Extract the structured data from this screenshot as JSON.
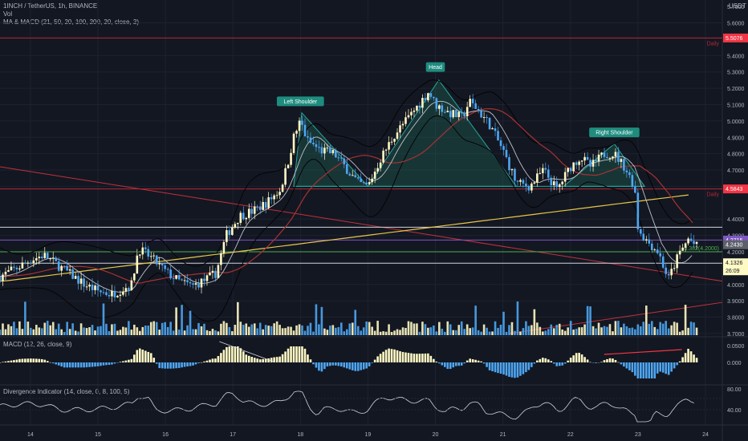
{
  "header": {
    "symbol": "1INCH / TetherUS, 1h, BINANCE",
    "vol": "Vol",
    "indicator": "MA & MACD (21, 50, 20, 100, 200, 20, close, 2)",
    "currency": "USDT"
  },
  "macd_panel": {
    "label": "MACD (12, 26, close, 9)",
    "ticks": [
      "0.0500",
      "0.000"
    ]
  },
  "div_panel": {
    "label": "Divergence Indicator (14, close, 0, 8, 100, 5)",
    "ticks": [
      "80.00",
      "40.00"
    ]
  },
  "price_axis": {
    "ticks": [
      "5.6000",
      "5.4000",
      "5.3000",
      "5.2000",
      "5.1000",
      "5.0000",
      "4.9000",
      "4.8000",
      "4.7000",
      "4.6000",
      "4.4000",
      "4.3000",
      "4.2000",
      "4.0000",
      "3.9000",
      "3.8000",
      "3.7000"
    ],
    "tick_values": [
      5.6,
      5.4,
      5.3,
      5.2,
      5.1,
      5.0,
      4.9,
      4.8,
      4.7,
      4.6,
      4.4,
      4.3,
      4.2,
      4.0,
      3.9,
      3.8,
      3.7
    ],
    "top_label": "5.7000"
  },
  "price_tags": [
    {
      "text": "5.5076",
      "value": 5.5076,
      "color": "#f23645"
    },
    {
      "text": "4.5843",
      "value": 4.5843,
      "color": "#f23645"
    },
    {
      "text": "4.2715",
      "value": 4.2715,
      "color": "#7e57c2"
    },
    {
      "text": "4.2430",
      "value": 4.243,
      "color": "#5d606b"
    },
    {
      "text": "4.1326",
      "value": 4.1326,
      "color": "#fff9c4",
      "text_color": "#131722"
    },
    {
      "text": "26:09",
      "value": 4.09,
      "color": "#fff9c4",
      "text_color": "#131722"
    }
  ],
  "levels": [
    {
      "value": 5.5076,
      "color": "#b22833",
      "label": "Daily"
    },
    {
      "value": 4.5843,
      "color": "#b22833",
      "label": "Daily"
    },
    {
      "value": 4.35,
      "color": "#d1d4dc"
    },
    {
      "value": 4.2715,
      "color": "#7e57c2"
    },
    {
      "value": 4.2,
      "color": "#4caf50",
      "label": "0.382(4.2000)"
    },
    {
      "value": 4.13,
      "color": "#d1d4dc"
    }
  ],
  "annotations": [
    {
      "text": "Left Shoulder",
      "x": 18.0,
      "y": 5.12
    },
    {
      "text": "Head",
      "x": 20.0,
      "y": 5.33
    },
    {
      "text": "Right Shoulder",
      "x": 22.65,
      "y": 4.93
    }
  ],
  "x_axis": {
    "labels": [
      "14",
      "15",
      "16",
      "17",
      "18",
      "19",
      "20",
      "21",
      "22",
      "23",
      "24"
    ],
    "values": [
      14,
      15,
      16,
      17,
      18,
      19,
      20,
      21,
      22,
      23,
      24
    ]
  },
  "chart_data": {
    "type": "line",
    "x_domain": [
      13.55,
      24.25
    ],
    "y_domain": [
      3.68,
      5.74
    ],
    "close": {
      "x": [
        13.55,
        13.8,
        14.0,
        14.2,
        14.4,
        14.6,
        14.8,
        15.0,
        15.2,
        15.4,
        15.5,
        15.6,
        15.8,
        16.0,
        16.2,
        16.4,
        16.6,
        16.75,
        16.9,
        17.1,
        17.3,
        17.5,
        17.7,
        17.8,
        17.9,
        18.0,
        18.1,
        18.3,
        18.5,
        18.7,
        18.85,
        19.0,
        19.2,
        19.4,
        19.6,
        19.75,
        19.9,
        20.0,
        20.2,
        20.4,
        20.5,
        20.6,
        20.8,
        21.0,
        21.2,
        21.4,
        21.6,
        21.8,
        22.0,
        22.15,
        22.3,
        22.5,
        22.65,
        22.8,
        22.95,
        23.0,
        23.1,
        23.3,
        23.45,
        23.6,
        23.75,
        23.9,
        24.0
      ],
      "y": [
        4.05,
        4.1,
        4.15,
        4.18,
        4.12,
        4.06,
        4.0,
        3.96,
        3.94,
        3.98,
        4.0,
        4.22,
        4.16,
        4.08,
        4.02,
        3.99,
        4.03,
        4.07,
        4.3,
        4.42,
        4.45,
        4.5,
        4.58,
        4.72,
        4.9,
        5.0,
        4.88,
        4.82,
        4.8,
        4.7,
        4.62,
        4.6,
        4.78,
        4.92,
        5.02,
        5.1,
        5.18,
        5.1,
        5.05,
        5.02,
        5.12,
        5.08,
        4.98,
        4.82,
        4.62,
        4.6,
        4.7,
        4.58,
        4.72,
        4.78,
        4.72,
        4.8,
        4.8,
        4.72,
        4.6,
        4.35,
        4.28,
        4.2,
        4.03,
        4.18,
        4.28,
        4.22,
        4.13
      ]
    },
    "horizontal_levels": [
      5.5076,
      4.5843,
      4.35,
      4.2715,
      4.2,
      4.13
    ],
    "volume_panel_ylim": [
      0,
      1
    ]
  },
  "colors": {
    "bull": "#fff9c4",
    "bear": "#4ea6f2",
    "ma_yellow": "#e6c84a",
    "ma_red": "#a83232",
    "ma_white": "#bfc2c8",
    "bb_black": "#050505",
    "trend_red": "#c2323a",
    "hs_fill": "#1f5a50",
    "hs_line": "#26a69a"
  }
}
